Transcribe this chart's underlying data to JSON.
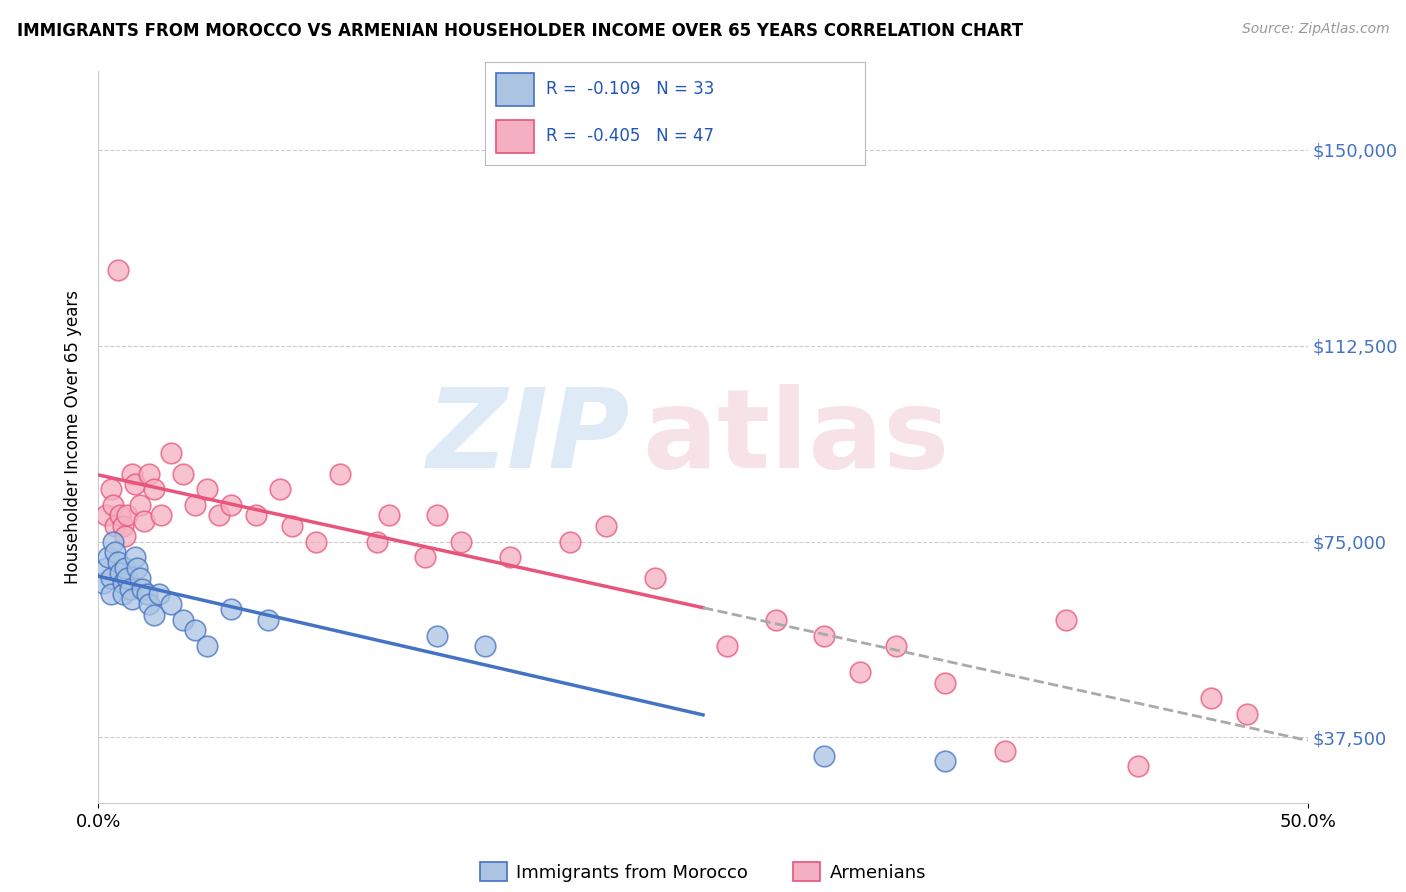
{
  "title": "IMMIGRANTS FROM MOROCCO VS ARMENIAN HOUSEHOLDER INCOME OVER 65 YEARS CORRELATION CHART",
  "source": "Source: ZipAtlas.com",
  "ylabel": "Householder Income Over 65 years",
  "xlim": [
    0.0,
    50.0
  ],
  "ylim": [
    25000,
    165000
  ],
  "yticks": [
    37500,
    75000,
    112500,
    150000
  ],
  "ytick_labels": [
    "$37,500",
    "$75,000",
    "$112,500",
    "$150,000"
  ],
  "color_morocco": "#aac4e2",
  "color_armenian": "#f5afc2",
  "line_color_morocco": "#4472c4",
  "line_color_armenian": "#e8547a",
  "morocco_x": [
    0.2,
    0.3,
    0.4,
    0.5,
    0.5,
    0.6,
    0.7,
    0.8,
    0.9,
    1.0,
    1.0,
    1.1,
    1.2,
    1.3,
    1.4,
    1.5,
    1.6,
    1.7,
    1.8,
    2.0,
    2.1,
    2.3,
    2.5,
    3.0,
    3.5,
    4.0,
    4.5,
    5.5,
    7.0,
    14.0,
    16.0,
    30.0,
    35.0
  ],
  "morocco_y": [
    67000,
    70000,
    72000,
    68000,
    65000,
    75000,
    73000,
    71000,
    69000,
    67000,
    65000,
    70000,
    68000,
    66000,
    64000,
    72000,
    70000,
    68000,
    66000,
    65000,
    63000,
    61000,
    65000,
    63000,
    60000,
    58000,
    55000,
    62000,
    60000,
    57000,
    55000,
    34000,
    33000
  ],
  "armenian_x": [
    0.3,
    0.5,
    0.6,
    0.7,
    0.8,
    0.9,
    1.0,
    1.1,
    1.2,
    1.4,
    1.5,
    1.7,
    1.9,
    2.1,
    2.3,
    2.6,
    3.0,
    3.5,
    4.0,
    4.5,
    5.0,
    5.5,
    6.5,
    7.5,
    8.0,
    9.0,
    10.0,
    11.5,
    12.0,
    13.5,
    14.0,
    15.0,
    17.0,
    19.5,
    21.0,
    23.0,
    26.0,
    28.0,
    30.0,
    31.5,
    33.0,
    35.0,
    37.5,
    40.0,
    43.0,
    46.0,
    47.5
  ],
  "armenian_y": [
    80000,
    85000,
    82000,
    78000,
    127000,
    80000,
    78000,
    76000,
    80000,
    88000,
    86000,
    82000,
    79000,
    88000,
    85000,
    80000,
    92000,
    88000,
    82000,
    85000,
    80000,
    82000,
    80000,
    85000,
    78000,
    75000,
    88000,
    75000,
    80000,
    72000,
    80000,
    75000,
    72000,
    75000,
    78000,
    68000,
    55000,
    60000,
    57000,
    50000,
    55000,
    48000,
    35000,
    60000,
    32000,
    45000,
    42000
  ],
  "morocco_line_xrange": [
    0.0,
    25.0
  ],
  "armenian_solid_xrange": [
    0.0,
    25.0
  ],
  "armenian_dash_xrange": [
    25.0,
    50.0
  ]
}
